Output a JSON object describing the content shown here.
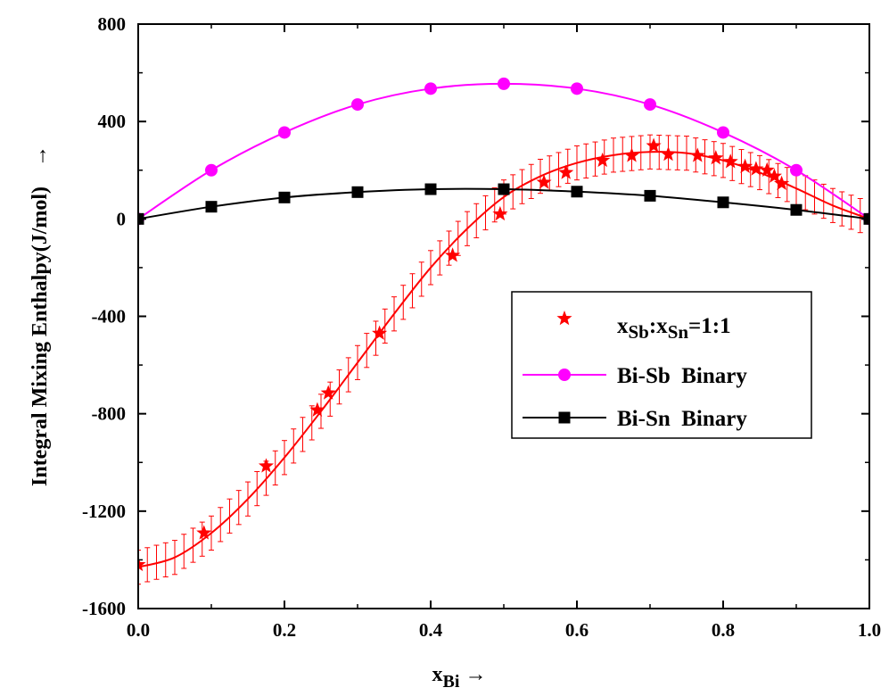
{
  "chart_data": {
    "type": "scatter",
    "xlabel": "x",
    "xlabel_sub": "Bi",
    "xlabel_arrow": "→",
    "ylabel": "Integral Mixing Enthalpy(J/mol)",
    "ylabel_arrow": "→",
    "xlim": [
      0.0,
      1.0
    ],
    "ylim": [
      -1600,
      800
    ],
    "xticks": [
      "0.0",
      "0.2",
      "0.4",
      "0.6",
      "0.8",
      "1.0"
    ],
    "xtick_values": [
      0.0,
      0.2,
      0.4,
      0.6,
      0.8,
      1.0
    ],
    "yticks": [
      "800",
      "400",
      "0",
      "-400",
      "-800",
      "-1200",
      "-1600"
    ],
    "ytick_values": [
      800,
      400,
      0,
      -400,
      -800,
      -1200,
      -1600
    ],
    "grid": false,
    "legend_position": "right-middle",
    "series": [
      {
        "label_parts": [
          "x",
          "Sb",
          ":x",
          "Sn",
          "=1:1"
        ],
        "color": "#ff0000",
        "marker": "star",
        "x": [
          0.0,
          0.09,
          0.175,
          0.245,
          0.26,
          0.33,
          0.43,
          0.495,
          0.555,
          0.585,
          0.635,
          0.675,
          0.705,
          0.725,
          0.765,
          0.79,
          0.81,
          0.83,
          0.845,
          0.86,
          0.87,
          0.88
        ],
        "y": [
          -1420,
          -1290,
          -1015,
          -785,
          -715,
          -470,
          -150,
          20,
          150,
          190,
          240,
          260,
          300,
          265,
          260,
          250,
          235,
          215,
          205,
          200,
          175,
          145
        ],
        "error": 70,
        "fit_x": [
          0.0,
          0.05,
          0.1,
          0.15,
          0.2,
          0.25,
          0.3,
          0.35,
          0.4,
          0.45,
          0.5,
          0.55,
          0.6,
          0.65,
          0.7,
          0.75,
          0.8,
          0.85,
          0.9,
          0.95,
          1.0
        ],
        "fit_y": [
          -1430,
          -1390,
          -1290,
          -1150,
          -980,
          -790,
          -590,
          -390,
          -200,
          -40,
          90,
          175,
          230,
          262,
          275,
          270,
          240,
          190,
          125,
          55,
          0
        ]
      },
      {
        "name": "Bi-Sb  Binary",
        "color": "#ff00ff",
        "marker": "circle",
        "x": [
          0.0,
          0.1,
          0.2,
          0.3,
          0.4,
          0.5,
          0.6,
          0.7,
          0.8,
          0.9,
          1.0
        ],
        "y": [
          0,
          200,
          355,
          470,
          535,
          555,
          535,
          470,
          355,
          200,
          0
        ]
      },
      {
        "name": "Bi-Sn  Binary",
        "color": "#000000",
        "marker": "square",
        "x": [
          0.0,
          0.1,
          0.2,
          0.3,
          0.4,
          0.5,
          0.6,
          0.7,
          0.8,
          0.9,
          1.0
        ],
        "y": [
          0,
          50,
          88,
          110,
          122,
          122,
          112,
          95,
          68,
          37,
          0
        ]
      }
    ]
  }
}
